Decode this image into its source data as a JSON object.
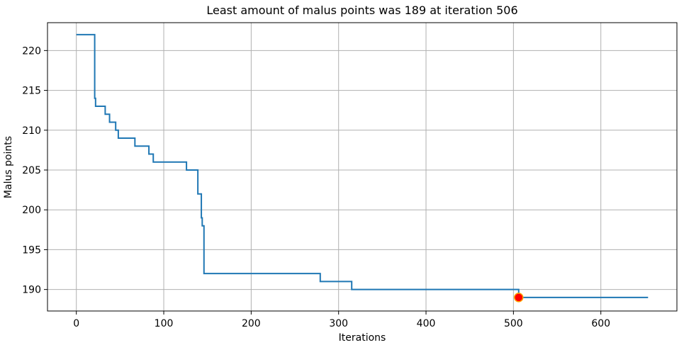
{
  "chart_data": {
    "type": "line",
    "title": "Least amount of malus points was 189 at iteration 506",
    "xlabel": "Iterations",
    "ylabel": "Malus points",
    "xlim": [
      -33,
      687
    ],
    "ylim": [
      187.3,
      223.5
    ],
    "xticks": [
      0,
      100,
      200,
      300,
      400,
      500,
      600
    ],
    "yticks": [
      190,
      195,
      200,
      205,
      210,
      215,
      220
    ],
    "grid": true,
    "line_color": "#1f77b4",
    "marker_color": "#ff0000",
    "marker_edge_color": "#ffa500",
    "step": "post",
    "series": [
      {
        "x": [
          0,
          20,
          21,
          22,
          33,
          38,
          45,
          48,
          67,
          83,
          86,
          88,
          126,
          139,
          141,
          143,
          144,
          146,
          279,
          315,
          506,
          654
        ],
        "y": [
          222,
          222,
          214,
          213,
          212,
          211,
          210,
          209,
          208,
          207,
          207,
          206,
          205,
          202,
          202,
          199,
          198,
          192,
          191,
          190,
          189,
          189
        ]
      }
    ],
    "highlight": {
      "x": 506,
      "y": 189
    }
  }
}
